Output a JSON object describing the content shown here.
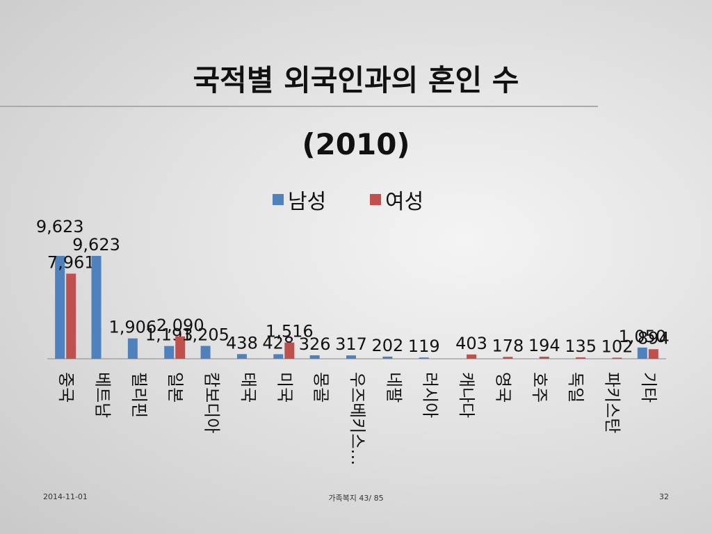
{
  "chart_data": {
    "type": "bar",
    "title": "국적별 외국인과의 혼인 수(2010)",
    "categories": [
      "중국",
      "베트남",
      "필리핀",
      "일본",
      "캄보디아",
      "태국",
      "미국",
      "몽골",
      "우즈베키스…",
      "네팔",
      "러시아",
      "캐나다",
      "영국",
      "호주",
      "독일",
      "파키스탄",
      "기타"
    ],
    "series": [
      {
        "name": "남성",
        "color": "#4f81bd",
        "values": [
          9623,
          9623,
          1906,
          1193,
          1205,
          438,
          428,
          326,
          317,
          202,
          119,
          null,
          null,
          null,
          null,
          null,
          1050
        ],
        "value_labels": [
          "9,623",
          "9,623",
          "1,906",
          "1,193",
          "1,205",
          "438",
          "428",
          "326",
          "317",
          "202",
          "119",
          null,
          null,
          null,
          null,
          null,
          "1,050"
        ]
      },
      {
        "name": "여성",
        "color": "#c0504d",
        "values": [
          7961,
          null,
          null,
          2090,
          null,
          null,
          1516,
          null,
          null,
          null,
          null,
          403,
          178,
          194,
          135,
          102,
          894
        ],
        "value_labels": [
          "7,961",
          null,
          null,
          "2,090",
          null,
          null,
          "1,516",
          null,
          null,
          null,
          null,
          "403",
          "178",
          "194",
          "135",
          "102",
          "894"
        ]
      }
    ],
    "legend": "top"
  },
  "footer": {
    "date": "2014-11-01",
    "center": "가족복지 43/ 85",
    "page": "32"
  }
}
